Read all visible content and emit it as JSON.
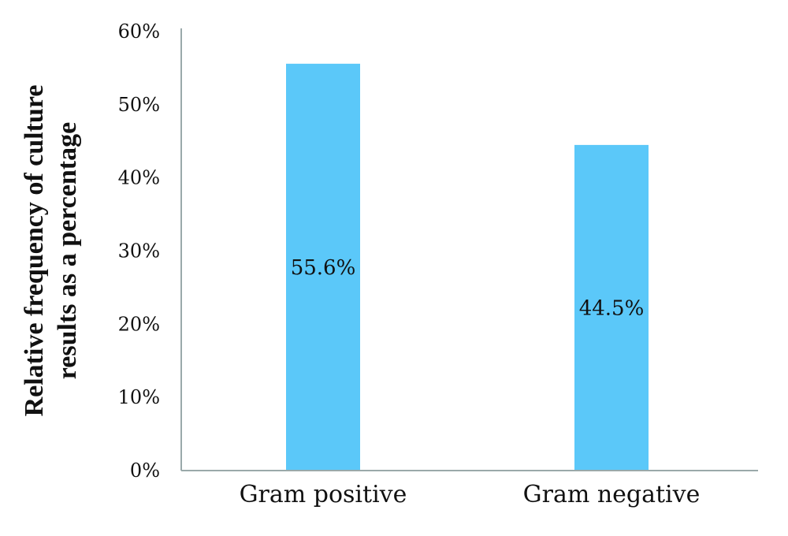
{
  "chart_data": {
    "type": "bar",
    "categories": [
      "Gram positive",
      "Gram negative"
    ],
    "values": [
      55.6,
      44.5
    ],
    "data_labels": [
      "55.6%",
      "44.5%"
    ],
    "ylabel_lines": [
      "Relative frequency of culture",
      "results as a percentage"
    ],
    "ylim": [
      0,
      60
    ],
    "yticks": [
      0,
      10,
      20,
      30,
      40,
      50,
      60
    ],
    "ytick_labels": [
      "0%",
      "10%",
      "20%",
      "30%",
      "40%",
      "50%",
      "60%"
    ],
    "bar_color": "#5bc8f9",
    "axis_color": "#9aa9aa",
    "grid": false,
    "legend": "none"
  }
}
